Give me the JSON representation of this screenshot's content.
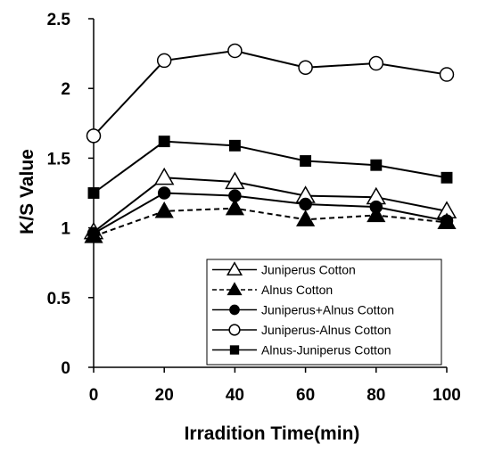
{
  "chart_data": {
    "type": "line",
    "title": "",
    "xlabel": "Irradition  Time(min)",
    "ylabel": "K/S Value",
    "x": [
      0,
      20,
      40,
      60,
      80,
      100
    ],
    "xlim": [
      0,
      100
    ],
    "ylim": [
      0,
      2.5
    ],
    "xticks": [
      "0",
      "20",
      "40",
      "60",
      "80",
      "100"
    ],
    "yticks": [
      "0",
      "0.5",
      "1",
      "1.5",
      "2",
      "2.5"
    ],
    "grid": false,
    "legend_position": "bottom-right",
    "series": [
      {
        "name": "Juniperus Cotton",
        "marker": "triangle-open",
        "dash": "solid",
        "color": "#000000",
        "values": [
          0.97,
          1.36,
          1.33,
          1.23,
          1.22,
          1.12
        ]
      },
      {
        "name": "Alnus Cotton",
        "marker": "triangle-filled",
        "dash": "dashed",
        "color": "#000000",
        "values": [
          0.94,
          1.12,
          1.14,
          1.06,
          1.09,
          1.04
        ]
      },
      {
        "name": "Juniperus+Alnus Cotton",
        "marker": "circle-filled",
        "dash": "solid",
        "color": "#000000",
        "values": [
          0.96,
          1.25,
          1.23,
          1.17,
          1.15,
          1.05
        ]
      },
      {
        "name": "Juniperus-Alnus Cotton",
        "marker": "circle-open",
        "dash": "solid",
        "color": "#000000",
        "values": [
          1.66,
          2.2,
          2.27,
          2.15,
          2.18,
          2.1
        ]
      },
      {
        "name": "Alnus-Juniperus Cotton",
        "marker": "square-filled",
        "dash": "solid",
        "color": "#000000",
        "values": [
          1.25,
          1.62,
          1.59,
          1.48,
          1.45,
          1.36
        ]
      }
    ]
  }
}
